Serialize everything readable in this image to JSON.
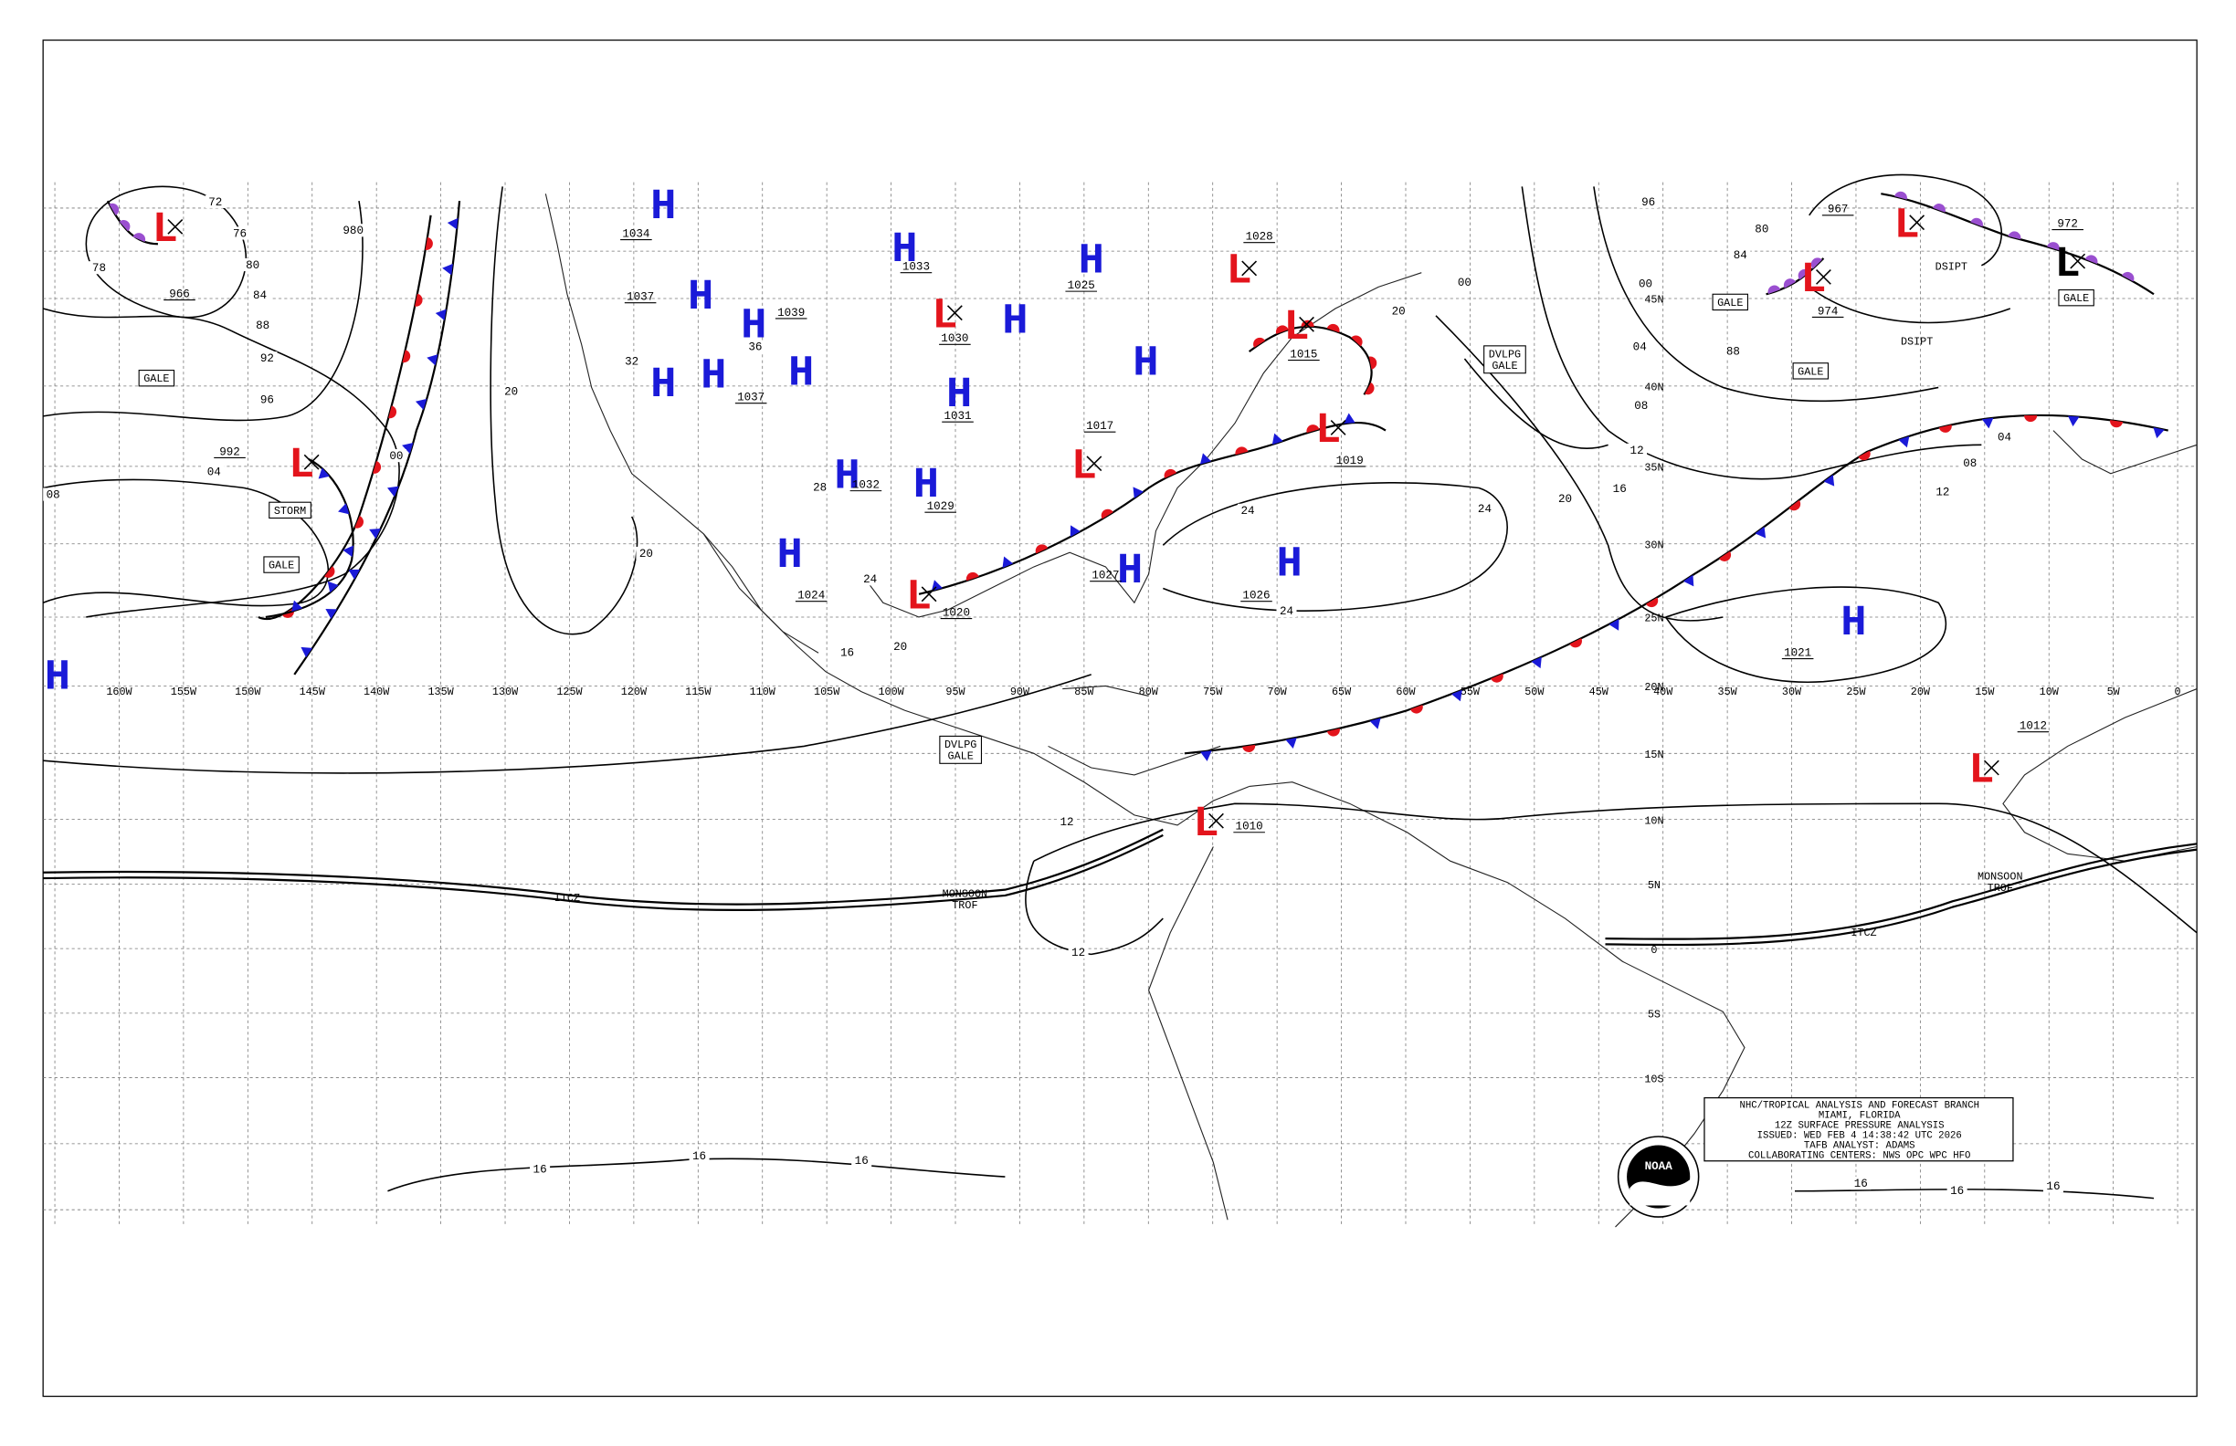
{
  "colors": {
    "H": "#1a1ad8",
    "L": "#e3141c",
    "cold": "#1a1ad8",
    "warm": "#e3141c",
    "occluded": "#9a4fd0"
  },
  "lon_labels": [
    "160W",
    "155W",
    "150W",
    "145W",
    "140W",
    "135W",
    "130W",
    "125W",
    "120W",
    "115W",
    "110W",
    "105W",
    "100W",
    "95W",
    "90W",
    "85W",
    "80W",
    "75W",
    "70W",
    "65W",
    "60W",
    "55W",
    "50W",
    "45W",
    "40W",
    "35W",
    "30W",
    "25W",
    "20W",
    "15W",
    "10W",
    "5W",
    "0"
  ],
  "lat_labels": [
    "45N",
    "40N",
    "35N",
    "30N",
    "25N",
    "20N",
    "15N",
    "10N",
    "5N",
    "0",
    "5S",
    "10S"
  ],
  "centers": [
    {
      "letter": "H",
      "pressure": 1034
    },
    {
      "letter": "H",
      "pressure": 1037
    },
    {
      "letter": "H",
      "pressure": 1039
    },
    {
      "letter": "H"
    },
    {
      "letter": "H"
    },
    {
      "letter": "H",
      "pressure": 1037
    },
    {
      "letter": "H",
      "pressure": 1033
    },
    {
      "letter": "H"
    },
    {
      "letter": "H",
      "pressure": 1031
    },
    {
      "letter": "H",
      "pressure": 1025
    },
    {
      "letter": "H"
    },
    {
      "letter": "H",
      "pressure": 1032
    },
    {
      "letter": "H",
      "pressure": 1029
    },
    {
      "letter": "H",
      "pressure": 1024
    },
    {
      "letter": "H",
      "pressure": 1026
    },
    {
      "letter": "H",
      "pressure": 1027
    },
    {
      "letter": "H",
      "pressure": 1021
    },
    {
      "letter": "H"
    },
    {
      "letter": "L",
      "pressure": 966
    },
    {
      "letter": "L",
      "pressure": 992
    },
    {
      "letter": "L",
      "pressure": 1030
    },
    {
      "letter": "L",
      "pressure": 1028
    },
    {
      "letter": "L",
      "pressure": 1015
    },
    {
      "letter": "L",
      "pressure": 1019
    },
    {
      "letter": "L",
      "pressure": 1017
    },
    {
      "letter": "L",
      "pressure": 1020
    },
    {
      "letter": "L",
      "pressure": 1010
    },
    {
      "letter": "L",
      "pressure": 974
    },
    {
      "letter": "L",
      "pressure": 967
    },
    {
      "letter": "L",
      "pressure": 972,
      "color": "#000000"
    },
    {
      "letter": "L",
      "pressure": 1012
    }
  ],
  "isobar_labels": [
    "72",
    "76",
    "80",
    "84",
    "88",
    "92",
    "96",
    "980",
    "78",
    "00",
    "04",
    "08",
    "20",
    "20",
    "16",
    "20",
    "24",
    "28",
    "32",
    "36",
    "24",
    "24",
    "24",
    "20",
    "16",
    "12",
    "08",
    "04",
    "00",
    "96",
    "84",
    "80",
    "88",
    "04",
    "08",
    "12",
    "12",
    "12",
    "16",
    "16",
    "16",
    "16",
    "16",
    "16",
    "20",
    "00"
  ],
  "features": [
    {
      "lines": [
        "GALE"
      ]
    },
    {
      "lines": [
        "STORM"
      ]
    },
    {
      "lines": [
        "GALE"
      ]
    },
    {
      "lines": [
        "DVLPG",
        "GALE"
      ]
    },
    {
      "lines": [
        "DVLPG",
        "GALE"
      ]
    },
    {
      "lines": [
        "GALE"
      ]
    },
    {
      "lines": [
        "GALE"
      ]
    },
    {
      "lines": [
        "GALE"
      ]
    },
    {
      "lines": [
        "DSIPT"
      ]
    },
    {
      "lines": [
        "DSIPT"
      ]
    },
    {
      "lines": [
        "ITCZ"
      ]
    },
    {
      "lines": [
        "MONSOON",
        "TROF"
      ]
    },
    {
      "lines": [
        "ITCZ"
      ]
    },
    {
      "lines": [
        "MONSOON",
        "TROF"
      ]
    }
  ],
  "info_box": {
    "lines": [
      "NHC/TROPICAL ANALYSIS AND FORECAST BRANCH",
      "MIAMI, FLORIDA",
      "12Z SURFACE PRESSURE ANALYSIS",
      "ISSUED: WED FEB 4 14:38:42 UTC 2026",
      "TAFB ANALYST: ADAMS",
      "COLLABORATING CENTERS: NWS OPC WPC HFO"
    ]
  },
  "logo": "NOAA"
}
